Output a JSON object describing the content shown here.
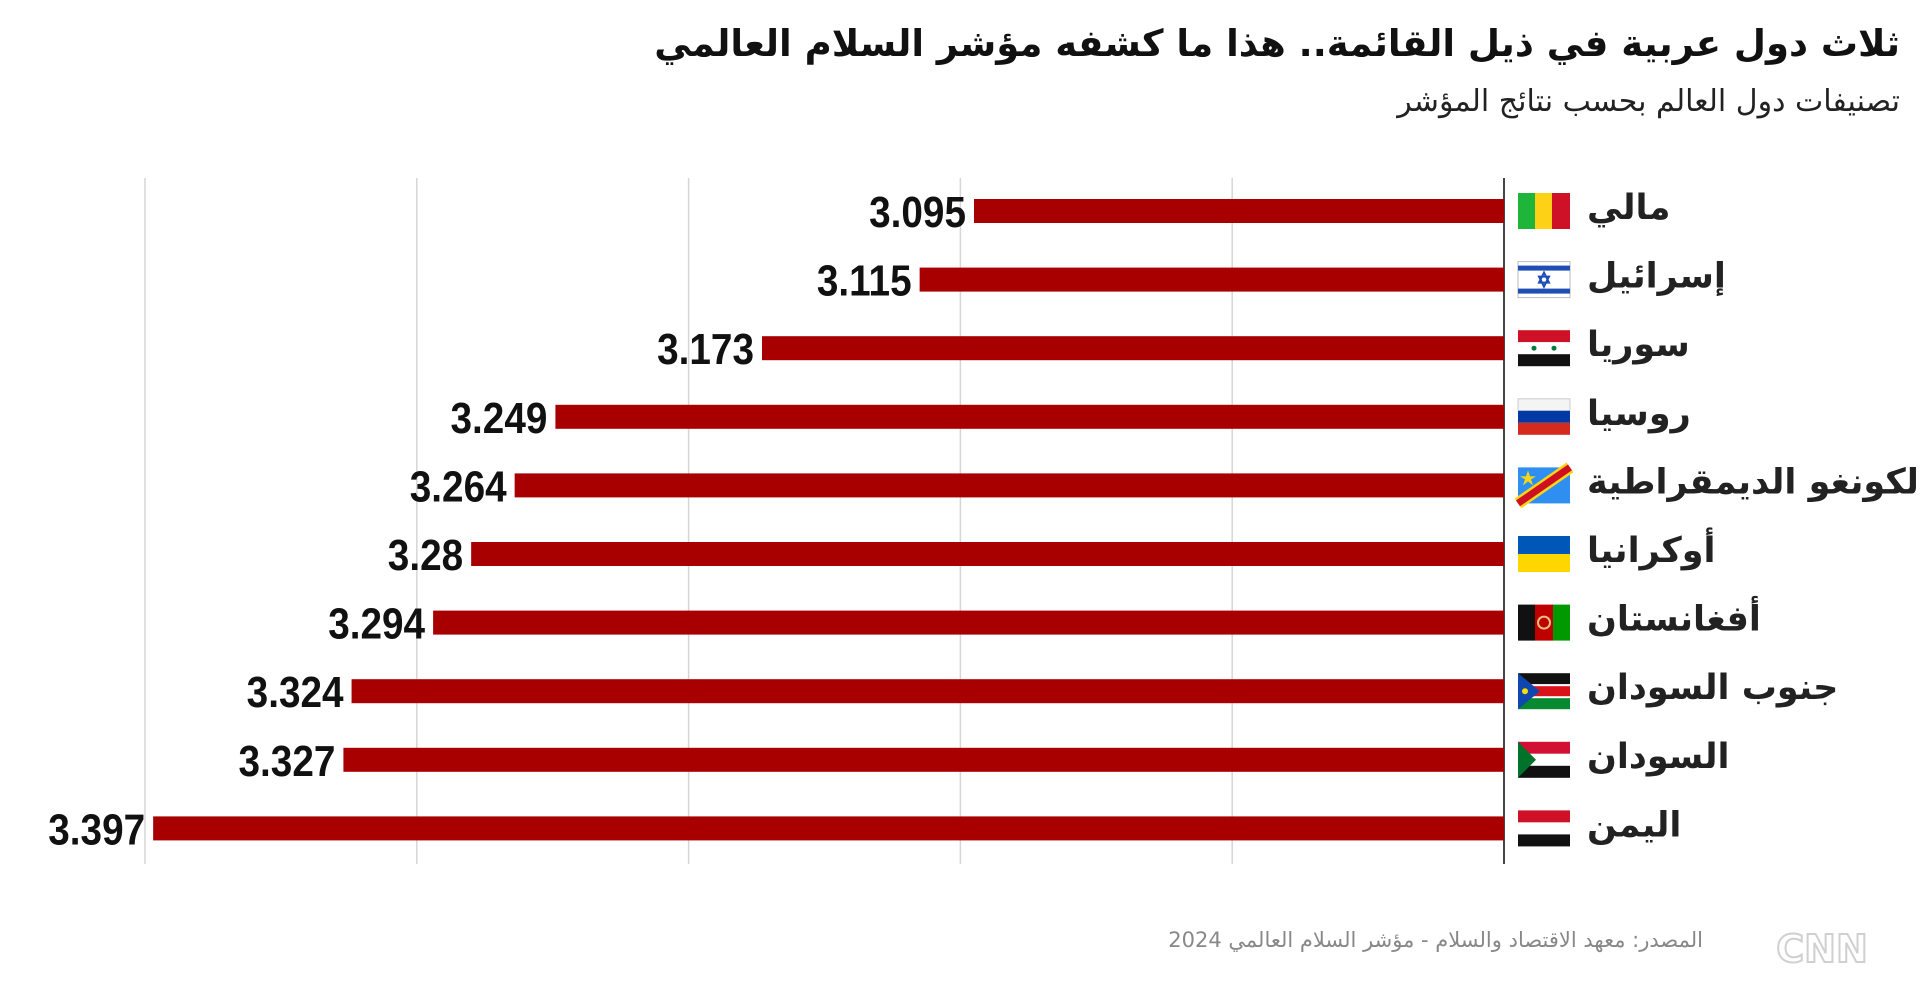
{
  "header": {
    "title": "ثلاث دول عربية في ذيل القائمة.. هذا ما كشفه مؤشر السلام العالمي",
    "subtitle": "تصنيفات دول العالم بحسب نتائج المؤشر"
  },
  "chart_data": {
    "type": "bar",
    "orientation": "horizontal",
    "title": "ثلاث دول عربية في ذيل القائمة.. هذا ما كشفه مؤشر السلام العالمي",
    "subtitle": "تصنيفات دول العالم بحسب نتائج المؤشر",
    "categories": [
      "مالي",
      "إسرائيل",
      "سوريا",
      "روسيا",
      "الكونغو الديمقراطية",
      "أوكرانيا",
      "أفغانستان",
      "جنوب السودان",
      "السودان",
      "اليمن"
    ],
    "flags": [
      "mali-flag",
      "israel-flag",
      "syria-flag",
      "russia-flag",
      "dr-congo-flag",
      "ukraine-flag",
      "afghanistan-flag",
      "south-sudan-flag",
      "sudan-flag",
      "yemen-flag"
    ],
    "values": [
      3.095,
      3.115,
      3.173,
      3.249,
      3.264,
      3.28,
      3.294,
      3.324,
      3.327,
      3.397
    ],
    "value_labels": [
      "3.095",
      "3.115",
      "3.173",
      "3.249",
      "3.264",
      "3.28",
      "3.294",
      "3.324",
      "3.327",
      "3.397"
    ],
    "xlim": [
      2.9,
      3.4
    ],
    "grid": true,
    "grid_step": 0.1,
    "bar_color": "#a80000",
    "direction": "bars extend right-to-left from axis",
    "legend": "none"
  },
  "footer": {
    "source": "المصدر: معهد الاقتصاد والسلام - مؤشر السلام العالمي 2024",
    "logo": "CNN بالعربية"
  }
}
